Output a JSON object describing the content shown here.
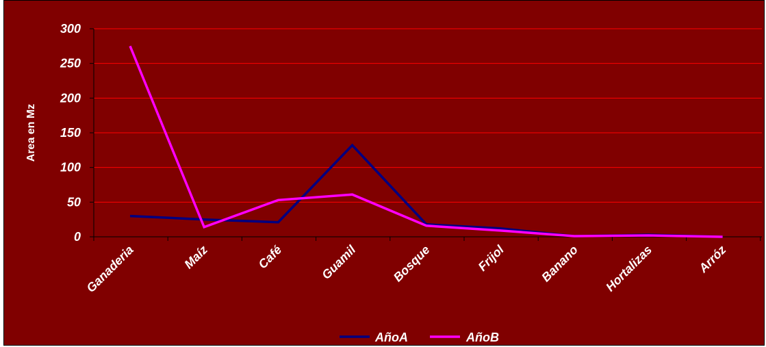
{
  "chart_data": {
    "type": "line",
    "title": "",
    "xlabel": "",
    "ylabel": "Area en Mz",
    "ylim": [
      0,
      300
    ],
    "yticks": [
      0,
      50,
      100,
      150,
      200,
      250,
      300
    ],
    "grid": true,
    "legend_position": "bottom",
    "categories": [
      "Ganaderia",
      "Maíz",
      "Café",
      "Guamil",
      "Bosque",
      "Frijol",
      "Banano",
      "Hortalizas",
      "Arróz"
    ],
    "series": [
      {
        "name": "AñoA",
        "color": "#000080",
        "values": [
          30,
          25,
          21,
          132,
          18,
          12,
          1,
          3,
          0
        ]
      },
      {
        "name": "AñoB",
        "color": "#ff00ff",
        "values": [
          275,
          14,
          53,
          61,
          16,
          9,
          1,
          2,
          0
        ]
      }
    ],
    "colors": {
      "background": "#800000",
      "gridline": "#ff0000",
      "axis": "#000000",
      "text": "#ffffff"
    }
  }
}
